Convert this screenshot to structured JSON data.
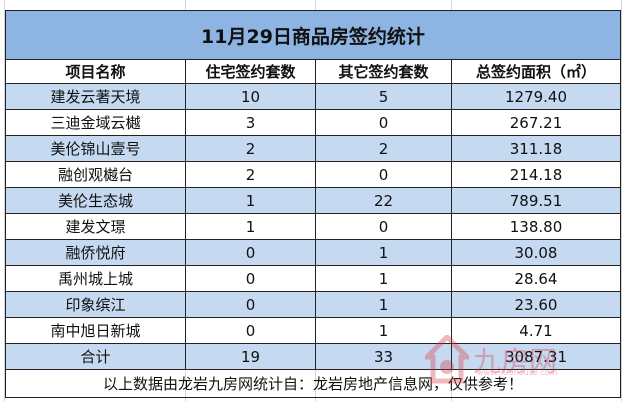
{
  "title": "11月29日商品房签约统计",
  "headers": [
    "项目名称",
    "住宅签约套数",
    "其它签约套数",
    "总签约面积（㎡）"
  ],
  "rows": [
    [
      "建发云著天境",
      "10",
      "5",
      "1279.40"
    ],
    [
      "三迪金域云樾",
      "3",
      "0",
      "267.21"
    ],
    [
      "美伦锦山壹号",
      "2",
      "2",
      "311.18"
    ],
    [
      "融创观樾台",
      "2",
      "0",
      "214.18"
    ],
    [
      "美伦生态城",
      "1",
      "22",
      "789.51"
    ],
    [
      "建发文璟",
      "1",
      "0",
      "138.80"
    ],
    [
      "融侨悦府",
      "0",
      "1",
      "30.08"
    ],
    [
      "禹州城上城",
      "0",
      "1",
      "28.64"
    ],
    [
      "印象缤江",
      "0",
      "1",
      "23.60"
    ],
    [
      "南中旭日新城",
      "0",
      "1",
      "4.71"
    ]
  ],
  "total": [
    "合计",
    "19",
    "33",
    "3087.31"
  ],
  "footer": "以上数据由龙岩九房网统计自：龙岩房地产信息网，仅供参考！",
  "watermark": {
    "text": "九房网",
    "url": "www.999house.com"
  },
  "colors": {
    "title_bg": "#8db4e2",
    "band_bg": "#c5d9f1"
  }
}
